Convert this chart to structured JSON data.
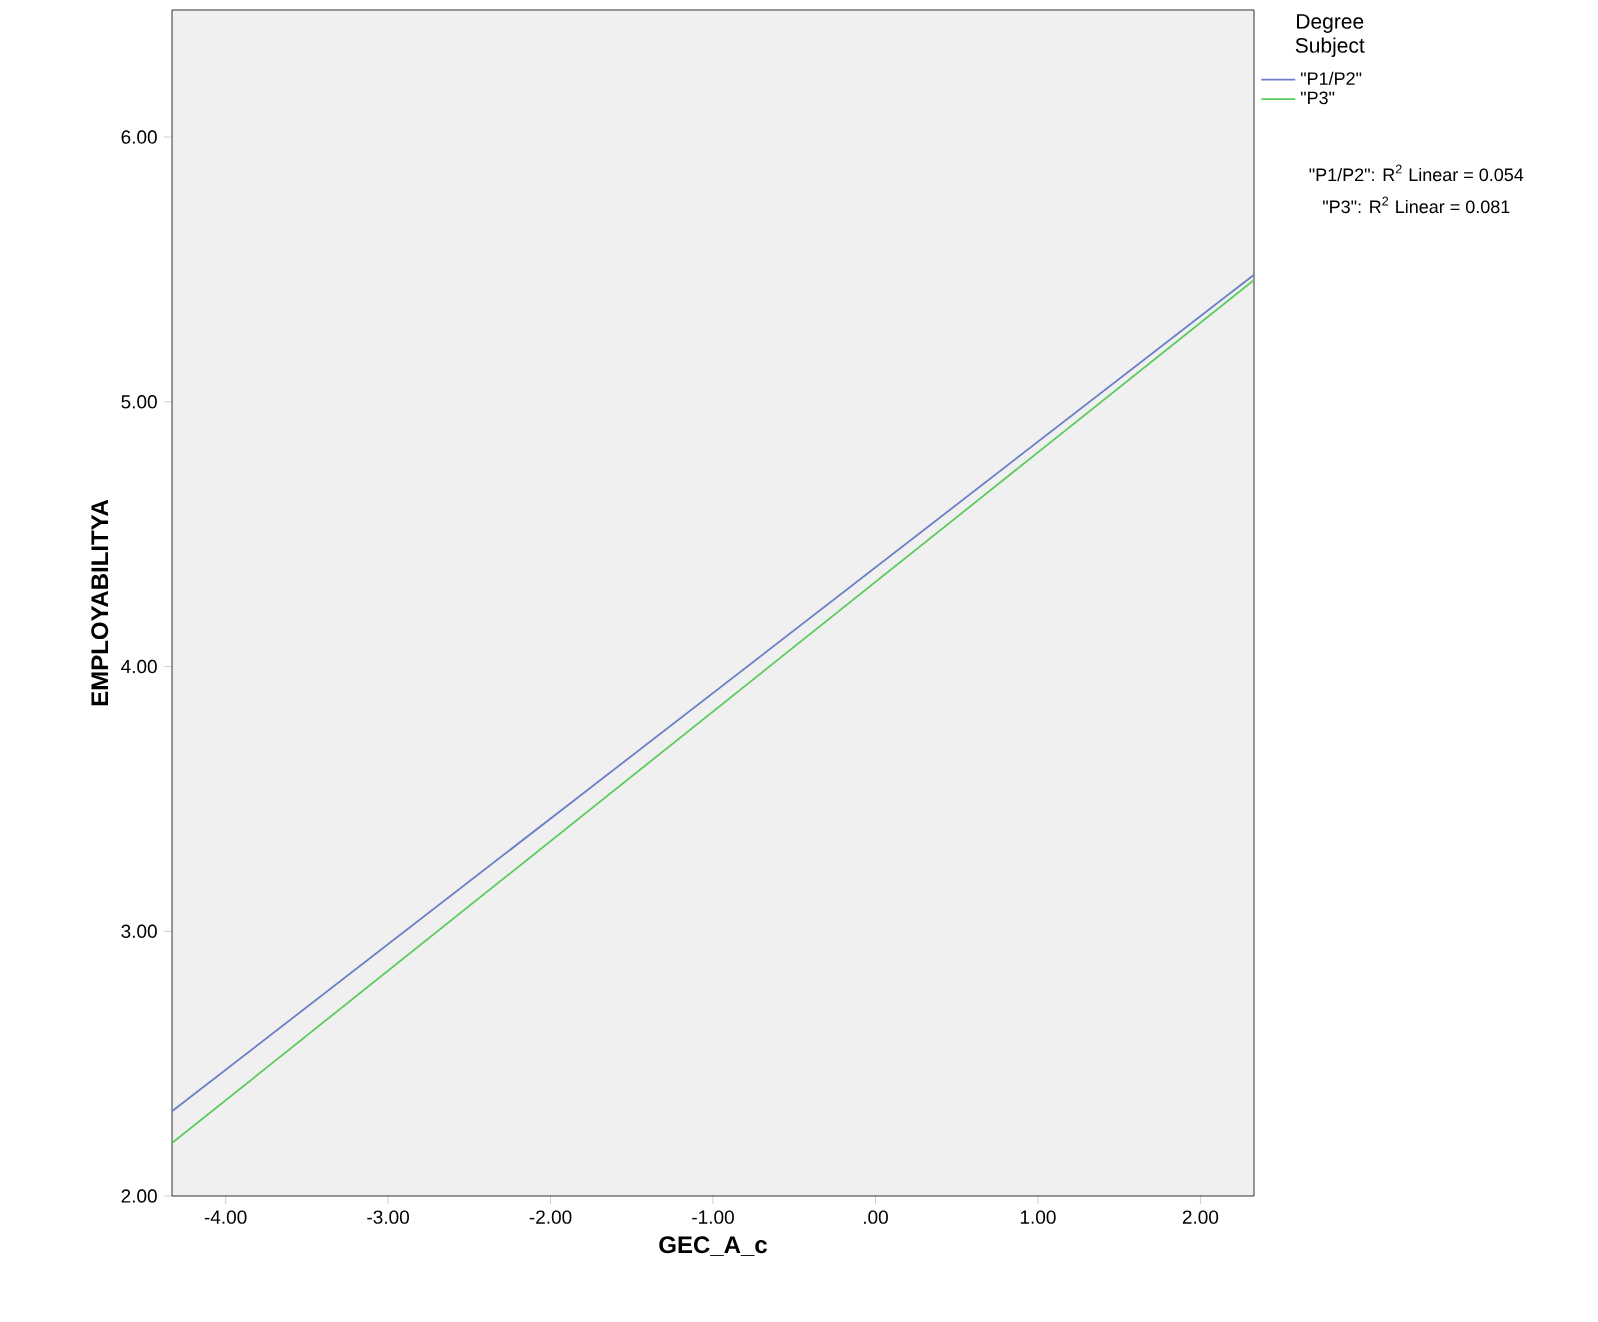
{
  "chart_data": {
    "type": "line",
    "xlabel": "GEC_A_c",
    "ylabel": "EMPLOYABILITYA",
    "legend_title": "Degree Subject",
    "x": [
      -4.33,
      2.33
    ],
    "series": [
      {
        "name": "\"P1/P2\"",
        "color": "#6b7fc9",
        "values": [
          2.32,
          5.48
        ]
      },
      {
        "name": "\"P3\"",
        "color": "#5ecb5e",
        "values": [
          2.2,
          5.46
        ]
      }
    ],
    "xlim": [
      -4.33,
      2.33
    ],
    "ylim": [
      2.0,
      6.48
    ],
    "xticks": [
      {
        "value": -4,
        "label": "-4.00"
      },
      {
        "value": -3,
        "label": "-3.00"
      },
      {
        "value": -2,
        "label": "-2.00"
      },
      {
        "value": -1,
        "label": "-1.00"
      },
      {
        "value": 0,
        "label": ".00"
      },
      {
        "value": 1,
        "label": "1.00"
      },
      {
        "value": 2,
        "label": "2.00"
      }
    ],
    "yticks": [
      {
        "value": 2,
        "label": "2.00"
      },
      {
        "value": 3,
        "label": "3.00"
      },
      {
        "value": 4,
        "label": "4.00"
      },
      {
        "value": 5,
        "label": "5.00"
      },
      {
        "value": 6,
        "label": "6.00"
      }
    ],
    "annotations": [
      "\"P1/P2\": R$^{2}$ Linear = 0.054",
      "\"P3\": R$^{2}$ Linear = 0.081"
    ],
    "legend": "top right",
    "grid": false,
    "marker": "none",
    "line_style": "solid"
  }
}
